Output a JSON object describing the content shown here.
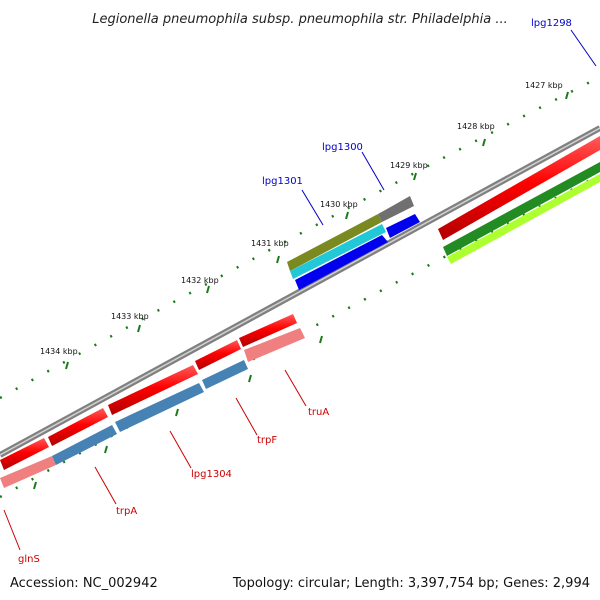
{
  "title": "Legionella pneumophila subsp. pneumophila str. Philadelphia ...",
  "footer": {
    "accession": "Accession: NC_002942",
    "topology": "Topology: circular; Length: 3,397,754 bp; Genes: 2,994"
  },
  "ticks": [
    "1427 kbp",
    "1428 kbp",
    "1429 kbp",
    "1430 kbp",
    "1431 kbp",
    "1432 kbp",
    "1433 kbp",
    "1434 kbp"
  ],
  "gene_labels": {
    "lpg1298": "lpg1298",
    "lpg1300": "lpg1300",
    "lpg1301": "lpg1301",
    "truA": "truA",
    "trpF": "trpF",
    "lpg1304": "lpg1304",
    "trpA": "trpA",
    "glnS": "glnS"
  },
  "colors": {
    "cds_red": "#ff0000",
    "cds_pink": "#f08080",
    "cds_steel": "#4682b4",
    "cds_blue": "#0000ee",
    "cds_cyan": "#20c8d8",
    "cds_olive": "#7a8a20",
    "cds_gray": "#707070",
    "cds_green": "#228b22",
    "cds_lightgreen": "#adff2f",
    "backbone": "#808080",
    "tick_green": "#1a7a1a",
    "label_red": "#cc0000",
    "label_blue": "#0000cc"
  }
}
